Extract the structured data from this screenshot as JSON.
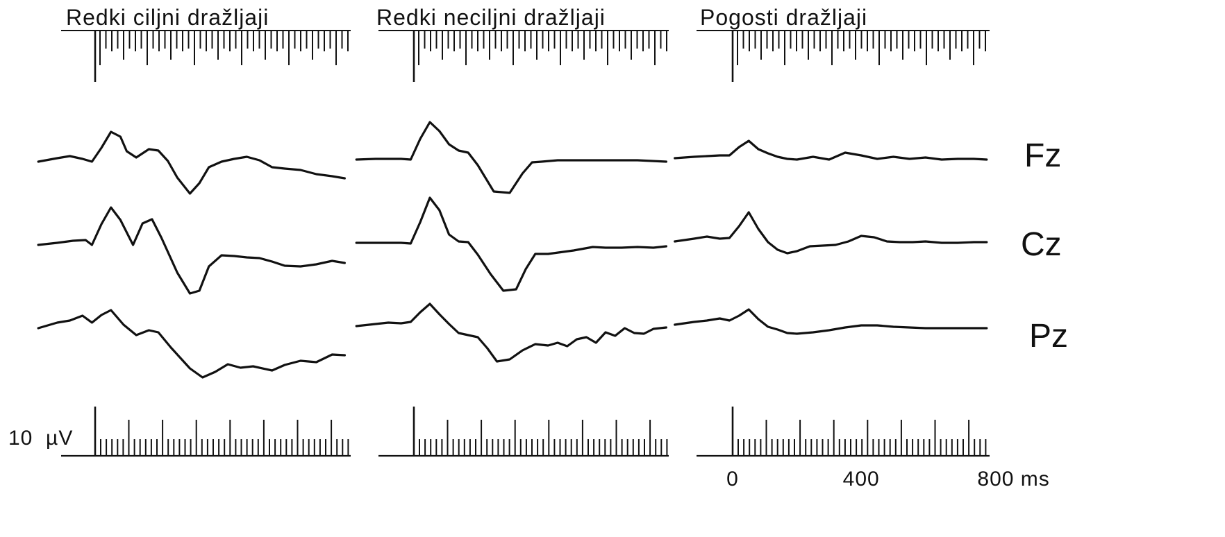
{
  "chart_data": {
    "type": "line",
    "x_unit": "ms",
    "y_unit": "µV",
    "x_range": [
      -200,
      800
    ],
    "time_axis": {
      "ticks": [
        "0",
        "400",
        "800 ms"
      ],
      "tick_values": [
        0,
        400,
        800
      ]
    },
    "amplitude_scale": {
      "label": "10  µV",
      "value": 10
    },
    "rows": [
      "Fz",
      "Cz",
      "Pz"
    ],
    "panels": [
      {
        "title": "Redki ciljni dražljaji",
        "series": [
          {
            "name": "Fz",
            "x": [
              -180,
              -120,
              -80,
              -40,
              -10,
              20,
              50,
              80,
              100,
              130,
              170,
              200,
              230,
              260,
              300,
              330,
              360,
              400,
              440,
              480,
              520,
              560,
              600,
              650,
              700,
              750,
              790
            ],
            "y": [
              0,
              0.5,
              0.8,
              0.4,
              0,
              2,
              4.3,
              3.6,
              1.5,
              0.6,
              1.8,
              1.6,
              0.1,
              -2.3,
              -4.6,
              -3.1,
              -0.8,
              0,
              0.4,
              0.7,
              0.2,
              -0.8,
              -1,
              -1.2,
              -1.8,
              -2.1,
              -2.4
            ]
          },
          {
            "name": "Cz",
            "x": [
              -180,
              -120,
              -70,
              -30,
              -10,
              20,
              50,
              80,
              120,
              150,
              180,
              210,
              260,
              300,
              330,
              360,
              400,
              440,
              480,
              520,
              560,
              600,
              650,
              700,
              750,
              790
            ],
            "y": [
              0,
              0.3,
              0.6,
              0.7,
              0,
              3,
              5.4,
              3.6,
              0,
              3.1,
              3.7,
              1,
              -4,
              -7,
              -6.6,
              -3.1,
              -1.5,
              -1.6,
              -1.8,
              -1.9,
              -2.4,
              -3,
              -3.1,
              -2.8,
              -2.3,
              -2.6
            ]
          },
          {
            "name": "Pz",
            "x": [
              -180,
              -120,
              -80,
              -40,
              -10,
              20,
              50,
              90,
              130,
              170,
              200,
              240,
              300,
              340,
              380,
              420,
              460,
              500,
              560,
              600,
              650,
              700,
              750,
              790
            ],
            "y": [
              0,
              0.8,
              1.1,
              1.8,
              0.8,
              1.9,
              2.6,
              0.5,
              -1,
              -0.3,
              -0.6,
              -2.8,
              -5.8,
              -7.1,
              -6.3,
              -5.2,
              -5.7,
              -5.5,
              -6.1,
              -5.3,
              -4.7,
              -4.9,
              -3.8,
              -3.9
            ]
          }
        ]
      },
      {
        "title": "Redki neciljni dražljaji",
        "series": [
          {
            "name": "Fz",
            "x": [
              -180,
              -120,
              -80,
              -40,
              -10,
              20,
              50,
              80,
              110,
              140,
              170,
              200,
              250,
              300,
              340,
              370,
              400,
              450,
              500,
              600,
              700,
              790
            ],
            "y": [
              0,
              0.1,
              0.1,
              0.1,
              0,
              3,
              5.4,
              4.1,
              2.2,
              1.3,
              1,
              -0.8,
              -4.6,
              -4.8,
              -2,
              -0.4,
              -0.3,
              -0.1,
              -0.1,
              -0.1,
              -0.1,
              -0.3
            ]
          },
          {
            "name": "Cz",
            "x": [
              -180,
              -120,
              -80,
              -40,
              -10,
              20,
              50,
              80,
              110,
              140,
              170,
              200,
              240,
              280,
              320,
              350,
              380,
              420,
              500,
              560,
              600,
              650,
              700,
              750,
              790
            ],
            "y": [
              0,
              0,
              0,
              0,
              -0.1,
              3,
              6.5,
              4.7,
              1.2,
              0.2,
              0.1,
              -1.7,
              -4.5,
              -6.9,
              -6.7,
              -3.8,
              -1.6,
              -1.6,
              -1.1,
              -0.6,
              -0.7,
              -0.7,
              -0.6,
              -0.7,
              -0.5
            ]
          },
          {
            "name": "Pz",
            "x": [
              -180,
              -120,
              -80,
              -40,
              -10,
              20,
              50,
              80,
              110,
              140,
              170,
              200,
              230,
              260,
              300,
              340,
              380,
              420,
              450,
              480,
              510,
              540,
              570,
              600,
              630,
              660,
              690,
              720,
              750,
              790
            ],
            "y": [
              0,
              0.3,
              0.5,
              0.4,
              0.6,
              2,
              3.2,
              1.7,
              0.3,
              -1,
              -1.3,
              -1.6,
              -3.2,
              -5.1,
              -4.8,
              -3.5,
              -2.6,
              -2.8,
              -2.4,
              -2.9,
              -1.9,
              -1.6,
              -2.4,
              -0.9,
              -1.4,
              -0.3,
              -1,
              -1.1,
              -0.4,
              -0.2
            ]
          }
        ]
      },
      {
        "title": "Pogosti dražljaji",
        "series": [
          {
            "name": "Fz",
            "x": [
              -180,
              -120,
              -80,
              -40,
              -10,
              20,
              50,
              80,
              110,
              140,
              170,
              200,
              250,
              300,
              350,
              400,
              450,
              500,
              550,
              600,
              650,
              700,
              750,
              790
            ],
            "y": [
              0,
              0.2,
              0.3,
              0.4,
              0.4,
              1.6,
              2.5,
              1.3,
              0.7,
              0.2,
              -0.1,
              -0.2,
              0.2,
              -0.2,
              0.8,
              0.4,
              -0.1,
              0.2,
              -0.1,
              0.1,
              -0.2,
              -0.1,
              -0.1,
              -0.2
            ]
          },
          {
            "name": "Cz",
            "x": [
              -180,
              -120,
              -80,
              -40,
              -10,
              20,
              50,
              80,
              110,
              140,
              170,
              200,
              240,
              280,
              320,
              360,
              400,
              440,
              480,
              520,
              560,
              600,
              650,
              700,
              750,
              790
            ],
            "y": [
              0,
              0.4,
              0.7,
              0.4,
              0.5,
              2.2,
              4.2,
              1.8,
              -0.1,
              -1.2,
              -1.7,
              -1.4,
              -0.7,
              -0.6,
              -0.5,
              0,
              0.8,
              0.6,
              0,
              -0.1,
              -0.1,
              0,
              -0.2,
              -0.2,
              -0.1,
              -0.1
            ]
          },
          {
            "name": "Pz",
            "x": [
              -180,
              -120,
              -80,
              -40,
              -10,
              20,
              50,
              80,
              110,
              140,
              170,
              200,
              250,
              300,
              350,
              400,
              450,
              500,
              550,
              600,
              650,
              700,
              750,
              790
            ],
            "y": [
              0,
              0.4,
              0.6,
              0.9,
              0.6,
              1.3,
              2.2,
              0.8,
              -0.3,
              -0.7,
              -1.2,
              -1.3,
              -1.1,
              -0.8,
              -0.4,
              -0.1,
              -0.1,
              -0.3,
              -0.4,
              -0.5,
              -0.5,
              -0.5,
              -0.5,
              -0.5
            ]
          }
        ]
      }
    ]
  }
}
